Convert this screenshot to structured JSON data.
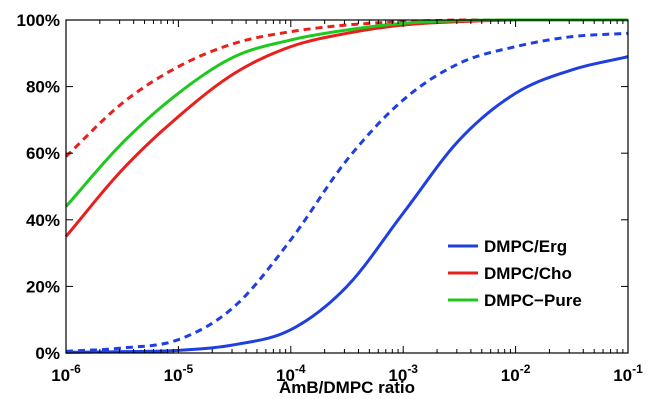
{
  "chart_data": {
    "type": "line",
    "title": "",
    "xlabel": "AmB/DMPC ratio",
    "ylabel": "",
    "xscale": "log",
    "xlim": [
      1e-06,
      0.1
    ],
    "ylim": [
      0,
      100
    ],
    "grid": false,
    "legend_position": "lower-right",
    "x_ticks": [
      {
        "base": "10",
        "exp": "-6"
      },
      {
        "base": "10",
        "exp": "-5"
      },
      {
        "base": "10",
        "exp": "-4"
      },
      {
        "base": "10",
        "exp": "-3"
      },
      {
        "base": "10",
        "exp": "-2"
      },
      {
        "base": "10",
        "exp": "-1"
      }
    ],
    "y_ticks": [
      "0%",
      "20%",
      "40%",
      "60%",
      "80%",
      "100%"
    ],
    "x": [
      1e-06,
      3.16e-06,
      1e-05,
      3.16e-05,
      0.0001,
      0.000316,
      0.001,
      0.00316,
      0.01,
      0.0316,
      0.1
    ],
    "series": [
      {
        "name": "DMPC/Erg",
        "color": "#1f3fe0",
        "style": "solid",
        "in_legend": true,
        "values": [
          0.2,
          0.4,
          0.8,
          2.5,
          7,
          20,
          42,
          64,
          78,
          85,
          89
        ]
      },
      {
        "name": "DMPC/Erg",
        "color": "#1f3fe0",
        "style": "dashed",
        "in_legend": false,
        "values": [
          0.5,
          1.5,
          4,
          14,
          34,
          58,
          76,
          87,
          92,
          95,
          96
        ]
      },
      {
        "name": "DMPC/Cho",
        "color": "#e8201c",
        "style": "solid",
        "in_legend": true,
        "values": [
          35,
          55,
          71,
          84,
          92,
          96,
          98.5,
          99.5,
          100,
          100,
          100
        ]
      },
      {
        "name": "DMPC/Cho",
        "color": "#e8201c",
        "style": "dashed",
        "in_legend": false,
        "values": [
          59,
          75,
          86,
          93,
          96.5,
          98.5,
          99.5,
          100,
          100,
          100,
          100
        ]
      },
      {
        "name": "DMPC−Pure",
        "color": "#1fc81f",
        "style": "solid",
        "in_legend": true,
        "values": [
          44,
          63,
          78,
          89,
          94,
          97,
          99,
          99.8,
          100,
          100,
          100
        ]
      }
    ]
  }
}
